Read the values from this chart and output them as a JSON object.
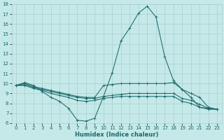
{
  "xlabel": "Humidex (Indice chaleur)",
  "xlim": [
    -0.5,
    23.5
  ],
  "ylim": [
    6,
    18
  ],
  "xticks": [
    0,
    1,
    2,
    3,
    4,
    5,
    6,
    7,
    8,
    9,
    10,
    11,
    12,
    13,
    14,
    15,
    16,
    17,
    18,
    19,
    20,
    21,
    22,
    23
  ],
  "yticks": [
    6,
    7,
    8,
    9,
    10,
    11,
    12,
    13,
    14,
    15,
    16,
    17,
    18
  ],
  "bg_color": "#c5e8e8",
  "grid_color": "#aacfcf",
  "line_color": "#1a6b6b",
  "tick_fontsize": 5.0,
  "xlabel_fontsize": 6.0,
  "lines": [
    {
      "x": [
        0,
        1,
        2,
        3,
        4,
        5,
        6,
        7,
        8,
        9,
        10,
        11,
        12,
        13,
        14,
        15,
        16,
        17,
        18,
        19,
        20,
        21,
        22,
        23
      ],
      "y": [
        9.8,
        10.1,
        9.8,
        9.2,
        8.6,
        8.2,
        7.5,
        6.3,
        6.2,
        6.5,
        8.7,
        11.1,
        14.3,
        15.6,
        17.1,
        17.8,
        16.7,
        12.7,
        10.3,
        9.4,
        8.6,
        7.6,
        7.4,
        7.4
      ]
    },
    {
      "x": [
        0,
        1,
        2,
        3,
        4,
        5,
        6,
        7,
        8,
        9,
        10,
        11,
        12,
        13,
        14,
        15,
        16,
        17,
        18,
        19,
        20,
        21,
        22,
        23
      ],
      "y": [
        9.8,
        10.0,
        9.7,
        9.5,
        9.3,
        9.1,
        8.9,
        8.7,
        8.6,
        8.6,
        9.8,
        9.9,
        10.0,
        10.0,
        10.0,
        10.0,
        10.0,
        10.0,
        10.1,
        9.4,
        9.0,
        8.6,
        7.6,
        7.4
      ]
    },
    {
      "x": [
        0,
        1,
        2,
        3,
        4,
        5,
        6,
        7,
        8,
        9,
        10,
        11,
        12,
        13,
        14,
        15,
        16,
        17,
        18,
        19,
        20,
        21,
        22,
        23
      ],
      "y": [
        9.8,
        9.9,
        9.6,
        9.4,
        9.2,
        9.0,
        8.8,
        8.6,
        8.5,
        8.5,
        8.7,
        8.8,
        8.9,
        9.0,
        9.0,
        9.0,
        9.0,
        9.0,
        9.0,
        8.5,
        8.3,
        7.9,
        7.5,
        7.4
      ]
    },
    {
      "x": [
        0,
        1,
        2,
        3,
        4,
        5,
        6,
        7,
        8,
        9,
        10,
        11,
        12,
        13,
        14,
        15,
        16,
        17,
        18,
        19,
        20,
        21,
        22,
        23
      ],
      "y": [
        9.8,
        9.8,
        9.5,
        9.3,
        9.0,
        8.8,
        8.6,
        8.3,
        8.2,
        8.3,
        8.5,
        8.6,
        8.7,
        8.7,
        8.7,
        8.7,
        8.7,
        8.7,
        8.7,
        8.2,
        8.0,
        7.6,
        7.5,
        7.4
      ]
    }
  ]
}
